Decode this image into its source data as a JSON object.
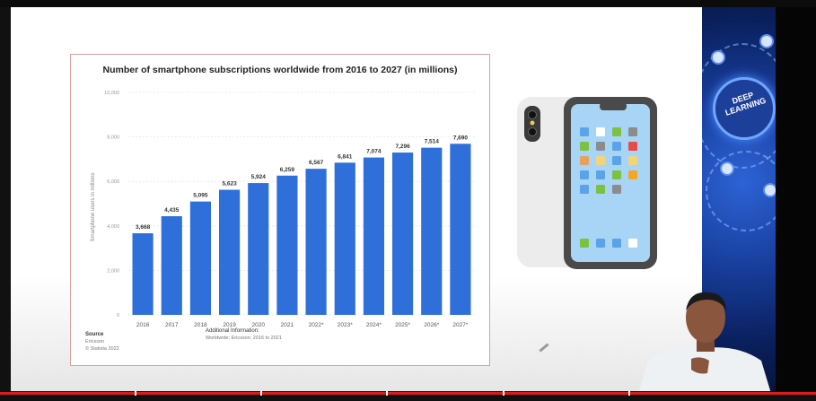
{
  "chart_data": {
    "type": "bar",
    "title": "Number of smartphone subscriptions worldwide from 2016 to 2027 (in millions)",
    "ylabel": "Smartphone users in millions",
    "xlabel": "",
    "categories": [
      "2016",
      "2017",
      "2018",
      "2019",
      "2020",
      "2021",
      "2022*",
      "2023*",
      "2024*",
      "2025*",
      "2026*",
      "2027*"
    ],
    "values": [
      3668,
      4435,
      5095,
      5623,
      5924,
      6259,
      6567,
      6841,
      7074,
      7296,
      7514,
      7690
    ],
    "value_labels": [
      "3,668",
      "4,435",
      "5,095",
      "5,623",
      "5,924",
      "6,259",
      "6,567",
      "6,841",
      "7,074",
      "7,296",
      "7,514",
      "7,690"
    ],
    "ylim": [
      0,
      10000
    ],
    "yticks": [
      0,
      2000,
      4000,
      6000,
      8000,
      10000
    ],
    "ytick_labels": [
      "0",
      "2,000",
      "4,000",
      "6,000",
      "8,000",
      "10,000"
    ],
    "grid": true,
    "bar_color": "#2f6fd9",
    "source_heading": "Source",
    "source_lines": [
      "Ericsson",
      "© Statista 2022"
    ],
    "additional_heading": "Additional Information:",
    "additional_text": "Worldwide; Ericsson; 2016 to 2021"
  },
  "side_banner": {
    "text": "DEEP LEARNING"
  },
  "phone": {
    "frame_color": "#4a4a4a",
    "screen_color": "#a8d4f5",
    "back_color": "#ececec",
    "app_colors": [
      [
        "#5ba3e8",
        "#ffffff",
        "#7cc242",
        "#8c8c8c"
      ],
      [
        "#7cc242",
        "#8c8c8c",
        "#5ba3e8",
        "#e84a4a"
      ],
      [
        "#e8a15b",
        "#f2d57a",
        "#5ba3e8",
        "#f2d57a"
      ],
      [
        "#5ba3e8",
        "#5ba3e8",
        "#7cc242",
        "#f5a623"
      ],
      [
        "#5ba3e8",
        "#7cc242",
        "#8c8c8c",
        ""
      ],
      [
        "#7cc242",
        "#5ba3e8",
        "#5ba3e8",
        "#ffffff"
      ]
    ]
  }
}
